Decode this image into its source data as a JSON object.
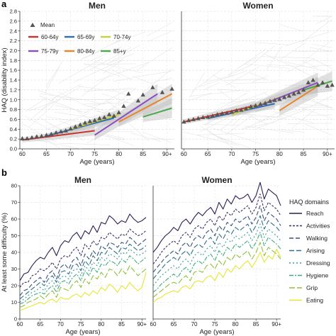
{
  "figure": {
    "panel_a_label": "a",
    "panel_b_label": "b"
  },
  "chart_data": [
    {
      "id": "a-men",
      "type": "scatter",
      "title": "Men",
      "xlabel": "Age (years)",
      "ylabel": "HAQ (disability index)",
      "xlim": [
        59.5,
        91.5
      ],
      "ylim": [
        0,
        2.8
      ],
      "xticks": [
        "60",
        "65",
        "70",
        "75",
        "80",
        "85",
        "90+"
      ],
      "xtick_values": [
        60,
        65,
        70,
        75,
        80,
        85,
        90
      ],
      "yticks": [
        "0.0",
        "0.2",
        "0.4",
        "0.6",
        "0.8",
        "1.0",
        "1.2",
        "1.4",
        "1.6",
        "1.8",
        "2.0",
        "2.2",
        "2.4",
        "2.6",
        "2.8"
      ],
      "grid": true,
      "legend": {
        "placement": "top-left",
        "mean_label": "Mean",
        "entries": [
          {
            "name": "60-64y",
            "color": "#c8342c"
          },
          {
            "name": "65-69y",
            "color": "#2f6db5"
          },
          {
            "name": "70-74y",
            "color": "#c9cf3c"
          },
          {
            "name": "75-79y",
            "color": "#8b4ec1"
          },
          {
            "name": "80-84y",
            "color": "#e8852a"
          },
          {
            "name": "85+y",
            "color": "#4aa84e"
          }
        ]
      },
      "mean_points": [
        {
          "x": 60,
          "y": 0.21
        },
        {
          "x": 61,
          "y": 0.21
        },
        {
          "x": 62,
          "y": 0.23
        },
        {
          "x": 63,
          "y": 0.25
        },
        {
          "x": 64,
          "y": 0.26
        },
        {
          "x": 65,
          "y": 0.28
        },
        {
          "x": 66,
          "y": 0.3
        },
        {
          "x": 67,
          "y": 0.33
        },
        {
          "x": 68,
          "y": 0.35
        },
        {
          "x": 69,
          "y": 0.37
        },
        {
          "x": 70,
          "y": 0.41
        },
        {
          "x": 71,
          "y": 0.45
        },
        {
          "x": 72,
          "y": 0.49
        },
        {
          "x": 73,
          "y": 0.53
        },
        {
          "x": 74,
          "y": 0.56
        },
        {
          "x": 75,
          "y": 0.58
        },
        {
          "x": 76,
          "y": 0.62
        },
        {
          "x": 77,
          "y": 0.64
        },
        {
          "x": 78,
          "y": 0.7
        },
        {
          "x": 79,
          "y": 0.67
        },
        {
          "x": 80,
          "y": 0.74
        },
        {
          "x": 81,
          "y": 0.87
        },
        {
          "x": 82,
          "y": 1.12
        },
        {
          "x": 84,
          "y": 0.98
        },
        {
          "x": 85,
          "y": 1.1
        },
        {
          "x": 87,
          "y": 1.25
        },
        {
          "x": 89,
          "y": 1.15
        },
        {
          "x": 91,
          "y": 1.22
        }
      ],
      "trend_lines": [
        {
          "name": "60-64y",
          "x": [
            60,
            75
          ],
          "y": [
            0.18,
            0.37
          ],
          "color": "#c8342c"
        },
        {
          "name": "65-69y",
          "x": [
            65,
            79
          ],
          "y": [
            0.26,
            0.63
          ],
          "color": "#2f6db5"
        },
        {
          "name": "70-74y",
          "x": [
            70,
            80
          ],
          "y": [
            0.4,
            0.7
          ],
          "color": "#c9cf3c"
        },
        {
          "name": "75-79y",
          "x": [
            75,
            88
          ],
          "y": [
            0.28,
            1.12
          ],
          "color": "#8b4ec1"
        },
        {
          "name": "80-84y",
          "x": [
            80,
            91
          ],
          "y": [
            0.55,
            1.12
          ],
          "color": "#e8852a"
        },
        {
          "name": "85+y",
          "x": [
            85,
            91
          ],
          "y": [
            0.65,
            0.83
          ],
          "color": "#4aa84e"
        }
      ]
    },
    {
      "id": "a-women",
      "type": "scatter",
      "title": "Women",
      "xlabel": "Age (years)",
      "xlim": [
        59.5,
        91.5
      ],
      "ylim": [
        0,
        2.8
      ],
      "xticks": [
        "60",
        "65",
        "70",
        "75",
        "80",
        "85",
        "90+"
      ],
      "xtick_values": [
        60,
        65,
        70,
        75,
        80,
        85,
        90
      ],
      "grid": true,
      "mean_points": [
        {
          "x": 60,
          "y": 0.55
        },
        {
          "x": 61,
          "y": 0.58
        },
        {
          "x": 62,
          "y": 0.6
        },
        {
          "x": 63,
          "y": 0.62
        },
        {
          "x": 64,
          "y": 0.64
        },
        {
          "x": 65,
          "y": 0.65
        },
        {
          "x": 66,
          "y": 0.67
        },
        {
          "x": 67,
          "y": 0.7
        },
        {
          "x": 68,
          "y": 0.72
        },
        {
          "x": 69,
          "y": 0.73
        },
        {
          "x": 70,
          "y": 0.75
        },
        {
          "x": 71,
          "y": 0.78
        },
        {
          "x": 72,
          "y": 0.79
        },
        {
          "x": 73,
          "y": 0.82
        },
        {
          "x": 74,
          "y": 0.86
        },
        {
          "x": 75,
          "y": 0.88
        },
        {
          "x": 76,
          "y": 0.91
        },
        {
          "x": 77,
          "y": 0.93
        },
        {
          "x": 78,
          "y": 0.97
        },
        {
          "x": 79,
          "y": 0.99
        },
        {
          "x": 80,
          "y": 1.01
        },
        {
          "x": 81,
          "y": 1.05
        },
        {
          "x": 82,
          "y": 1.08
        },
        {
          "x": 83,
          "y": 1.12
        },
        {
          "x": 84,
          "y": 1.15
        },
        {
          "x": 85,
          "y": 1.2
        },
        {
          "x": 86,
          "y": 1.35
        },
        {
          "x": 87,
          "y": 1.4
        },
        {
          "x": 88,
          "y": 1.3
        },
        {
          "x": 89,
          "y": 1.35
        },
        {
          "x": 90,
          "y": 1.28
        },
        {
          "x": 91,
          "y": 1.3
        }
      ],
      "trend_lines": [
        {
          "name": "60-64y",
          "x": [
            60,
            75
          ],
          "y": [
            0.55,
            0.88
          ],
          "color": "#c8342c"
        },
        {
          "name": "65-69y",
          "x": [
            65,
            79
          ],
          "y": [
            0.62,
            0.92
          ],
          "color": "#2f6db5"
        },
        {
          "name": "70-74y",
          "x": [
            70,
            85
          ],
          "y": [
            0.7,
            1.22
          ],
          "color": "#c9cf3c"
        },
        {
          "name": "75-79y",
          "x": [
            75,
            88
          ],
          "y": [
            0.85,
            1.35
          ],
          "color": "#8b4ec1"
        },
        {
          "name": "80-84y",
          "x": [
            80,
            88
          ],
          "y": [
            0.78,
            1.28
          ],
          "color": "#e8852a"
        },
        {
          "name": "85+y",
          "x": [
            85,
            91
          ],
          "y": [
            1.2,
            1.38
          ],
          "color": "#4aa84e"
        }
      ]
    },
    {
      "id": "b-men",
      "type": "line",
      "title": "Men",
      "xlabel": "Age (years)",
      "ylabel": "At least some difficulty (%)",
      "xlim": [
        60,
        91
      ],
      "ylim": [
        0,
        80
      ],
      "xticks": [
        "60",
        "65",
        "70",
        "75",
        "80",
        "85",
        "90+"
      ],
      "xtick_values": [
        60,
        65,
        70,
        75,
        80,
        85,
        90
      ],
      "yticks": [
        "0",
        "10",
        "20",
        "30",
        "40",
        "50",
        "60",
        "70",
        "80"
      ],
      "grid": true,
      "series": [
        {
          "name": "Reach",
          "dash": "",
          "color": "#2d1b54",
          "values": [
            23,
            27,
            28,
            32,
            35,
            37,
            36,
            40,
            43,
            38,
            44,
            47,
            46,
            50,
            52,
            48,
            53,
            51,
            56,
            52,
            58,
            57,
            62,
            60,
            57,
            59,
            58,
            63,
            60,
            58,
            59,
            61
          ]
        },
        {
          "name": "Activities",
          "dash": "3,2",
          "color": "#3a2f66",
          "values": [
            19,
            22,
            22,
            26,
            27,
            30,
            29,
            31,
            34,
            30,
            36,
            38,
            37,
            41,
            43,
            38,
            45,
            42,
            47,
            44,
            49,
            48,
            52,
            50,
            48,
            51,
            50,
            54,
            52,
            50,
            51,
            53
          ]
        },
        {
          "name": "Walking",
          "dash": "6,3",
          "color": "#34527f",
          "values": [
            14,
            17,
            18,
            21,
            23,
            25,
            22,
            27,
            29,
            24,
            31,
            33,
            30,
            35,
            37,
            32,
            39,
            36,
            41,
            38,
            44,
            42,
            46,
            45,
            43,
            46,
            45,
            49,
            47,
            44,
            46,
            48
          ]
        },
        {
          "name": "Arising",
          "dash": "7,3",
          "color": "#2f6f8c",
          "values": [
            12,
            14,
            16,
            18,
            20,
            22,
            20,
            24,
            26,
            22,
            28,
            29,
            27,
            32,
            33,
            29,
            35,
            32,
            38,
            35,
            40,
            39,
            43,
            41,
            39,
            43,
            42,
            45,
            43,
            41,
            42,
            44
          ]
        },
        {
          "name": "Dressing",
          "dash": "2,3",
          "color": "#3a9a9a",
          "values": [
            10,
            12,
            14,
            16,
            17,
            19,
            17,
            21,
            23,
            19,
            25,
            26,
            24,
            29,
            30,
            26,
            32,
            29,
            34,
            32,
            37,
            35,
            39,
            38,
            36,
            40,
            39,
            42,
            40,
            38,
            39,
            41
          ]
        },
        {
          "name": "Hygiene",
          "dash": "6,2,2,2",
          "color": "#3eab7e",
          "values": [
            9,
            10,
            12,
            14,
            15,
            16,
            15,
            18,
            20,
            16,
            22,
            23,
            21,
            25,
            27,
            23,
            29,
            26,
            31,
            28,
            33,
            32,
            35,
            34,
            32,
            36,
            34,
            38,
            36,
            33,
            35,
            37
          ]
        },
        {
          "name": "Grip",
          "dash": "8,3",
          "color": "#8fc03a",
          "values": [
            7,
            8,
            10,
            11,
            12,
            14,
            12,
            15,
            17,
            13,
            19,
            18,
            17,
            21,
            23,
            19,
            24,
            21,
            26,
            24,
            28,
            25,
            30,
            29,
            26,
            30,
            27,
            32,
            29,
            26,
            28,
            30
          ]
        },
        {
          "name": "Eating",
          "dash": "",
          "color": "#e6e632",
          "values": [
            5,
            6,
            7,
            8,
            9,
            10,
            9,
            11,
            12,
            10,
            13,
            12,
            12,
            14,
            15,
            13,
            16,
            14,
            17,
            15,
            19,
            17,
            21,
            19,
            16,
            20,
            18,
            22,
            19,
            17,
            19,
            28
          ]
        }
      ]
    },
    {
      "id": "b-women",
      "type": "line",
      "title": "Women",
      "xlabel": "Age (years)",
      "xlim": [
        60,
        91
      ],
      "ylim": [
        0,
        80
      ],
      "xticks": [
        "60",
        "65",
        "70",
        "75",
        "80",
        "85",
        "90+"
      ],
      "xtick_values": [
        60,
        65,
        70,
        75,
        80,
        85,
        90
      ],
      "grid": true,
      "legend": {
        "title": "HAQ domains",
        "placement": "right"
      },
      "series": [
        {
          "name": "Reach",
          "dash": "",
          "color": "#2d1b54",
          "values": [
            40,
            43,
            47,
            50,
            52,
            55,
            53,
            58,
            60,
            57,
            61,
            64,
            62,
            65,
            67,
            63,
            70,
            66,
            72,
            69,
            74,
            72,
            73,
            75,
            70,
            74,
            82,
            72,
            78,
            76,
            74,
            68
          ]
        },
        {
          "name": "Activities",
          "dash": "3,2",
          "color": "#3a2f66",
          "values": [
            33,
            36,
            40,
            43,
            45,
            47,
            45,
            50,
            52,
            49,
            54,
            56,
            54,
            58,
            60,
            56,
            62,
            59,
            64,
            62,
            66,
            64,
            66,
            68,
            63,
            67,
            75,
            65,
            70,
            68,
            66,
            62
          ]
        },
        {
          "name": "Walking",
          "dash": "6,3",
          "color": "#34527f",
          "values": [
            28,
            31,
            34,
            37,
            39,
            41,
            39,
            44,
            46,
            43,
            48,
            50,
            48,
            52,
            54,
            50,
            56,
            53,
            58,
            56,
            60,
            58,
            60,
            62,
            57,
            61,
            68,
            59,
            64,
            62,
            60,
            56
          ]
        },
        {
          "name": "Arising",
          "dash": "7,3",
          "color": "#2f6f8c",
          "values": [
            24,
            27,
            30,
            33,
            35,
            37,
            35,
            39,
            41,
            38,
            43,
            45,
            43,
            47,
            49,
            45,
            51,
            48,
            53,
            51,
            55,
            53,
            55,
            57,
            52,
            56,
            62,
            54,
            59,
            57,
            55,
            52
          ]
        },
        {
          "name": "Dressing",
          "dash": "2,3",
          "color": "#3a9a9a",
          "values": [
            20,
            23,
            26,
            28,
            30,
            32,
            30,
            34,
            36,
            33,
            38,
            40,
            38,
            42,
            44,
            40,
            46,
            43,
            48,
            46,
            50,
            48,
            50,
            52,
            47,
            51,
            57,
            49,
            54,
            52,
            50,
            47
          ]
        },
        {
          "name": "Hygiene",
          "dash": "6,2,2,2",
          "color": "#3eab7e",
          "values": [
            16,
            18,
            21,
            23,
            25,
            27,
            25,
            29,
            31,
            28,
            33,
            35,
            33,
            37,
            39,
            35,
            41,
            38,
            43,
            41,
            45,
            43,
            45,
            47,
            42,
            46,
            52,
            44,
            49,
            47,
            45,
            42
          ]
        },
        {
          "name": "Grip",
          "dash": "8,3",
          "color": "#8fc03a",
          "values": [
            13,
            15,
            17,
            19,
            21,
            22,
            21,
            24,
            26,
            23,
            28,
            29,
            28,
            32,
            33,
            30,
            35,
            32,
            37,
            35,
            39,
            37,
            39,
            41,
            36,
            40,
            46,
            38,
            43,
            41,
            39,
            36
          ]
        },
        {
          "name": "Eating",
          "dash": "",
          "color": "#e6e632",
          "values": [
            10,
            12,
            13,
            15,
            16,
            17,
            16,
            19,
            20,
            18,
            22,
            23,
            22,
            25,
            26,
            23,
            28,
            25,
            30,
            28,
            32,
            30,
            33,
            35,
            31,
            35,
            40,
            34,
            38,
            36,
            42,
            37
          ]
        }
      ]
    }
  ]
}
